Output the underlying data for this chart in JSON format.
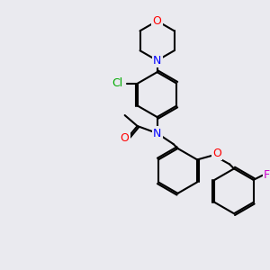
{
  "background_color": "#eaeaef",
  "bond_color": "#000000",
  "bond_width": 1.5,
  "atom_labels": {
    "O_morpholine": {
      "text": "O",
      "color": "#ff0000",
      "fontsize": 9
    },
    "N_morpholine": {
      "text": "N",
      "color": "#0000ff",
      "fontsize": 9
    },
    "Cl": {
      "text": "Cl",
      "color": "#00aa00",
      "fontsize": 9
    },
    "N_amide": {
      "text": "N",
      "color": "#0000ff",
      "fontsize": 9
    },
    "O_amide": {
      "text": "O",
      "color": "#ff0000",
      "fontsize": 9
    },
    "O_ether": {
      "text": "O",
      "color": "#ff0000",
      "fontsize": 9
    },
    "F": {
      "text": "F",
      "color": "#cc00cc",
      "fontsize": 9
    }
  }
}
